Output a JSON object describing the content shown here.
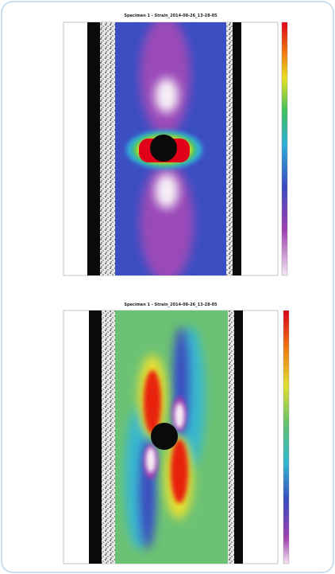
{
  "figures": [
    {
      "title": "Specimen 1 - Strain_2014-08-26_13-28-05"
    },
    {
      "title": "Specimen 1 - Strain_2014-08-26_13-28-05"
    }
  ]
}
